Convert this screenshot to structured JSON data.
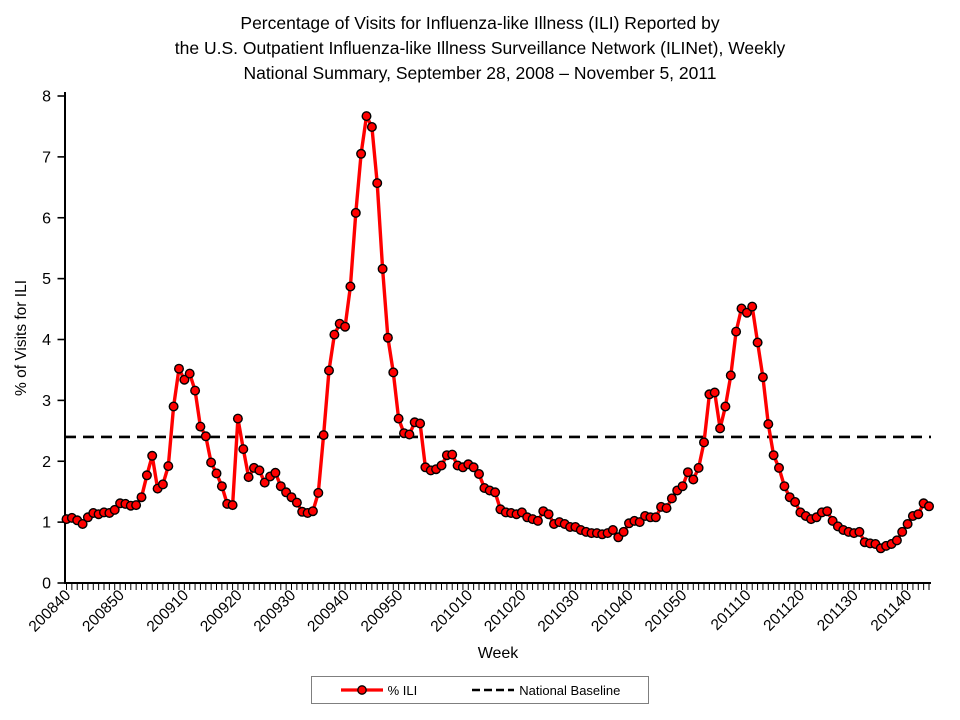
{
  "title_lines": [
    "Percentage of Visits for Influenza-like Illness (ILI) Reported by",
    "the U.S. Outpatient Influenza-like Illness Surveillance Network (ILINet), Weekly",
    "National Summary, September 28, 2008 – November 5, 2011"
  ],
  "y_axis": {
    "label": "% of Visits for ILI",
    "min": 0,
    "max": 8,
    "ticks": [
      0,
      1,
      2,
      3,
      4,
      5,
      6,
      7,
      8
    ]
  },
  "x_axis": {
    "label": "Week",
    "tick_labels": [
      "200840",
      "200850",
      "200910",
      "200920",
      "200930",
      "200940",
      "200950",
      "201010",
      "201020",
      "201030",
      "201040",
      "201050",
      "201110",
      "201120",
      "201130",
      "201140"
    ]
  },
  "legend": {
    "items": [
      {
        "label": "% ILI",
        "type": "line-marker",
        "color": "#ff0000"
      },
      {
        "label": "National Baseline",
        "type": "dashed-line",
        "color": "#000000"
      }
    ]
  },
  "chart_data": {
    "type": "line",
    "title": "Percentage of Visits for Influenza-like Illness (ILI) Reported by the U.S. Outpatient Influenza-like Illness Surveillance Network (ILINet), Weekly National Summary, September 28, 2008 – November 5, 2011",
    "xlabel": "Week",
    "ylabel": "% of Visits for ILI",
    "ylim": [
      0,
      8
    ],
    "grid": false,
    "legend_position": "bottom-center",
    "x": [
      "200840",
      "200841",
      "200842",
      "200843",
      "200844",
      "200845",
      "200846",
      "200847",
      "200848",
      "200849",
      "200850",
      "200851",
      "200852",
      "200901",
      "200902",
      "200903",
      "200904",
      "200905",
      "200906",
      "200907",
      "200908",
      "200909",
      "200910",
      "200911",
      "200912",
      "200913",
      "200914",
      "200915",
      "200916",
      "200917",
      "200918",
      "200919",
      "200920",
      "200921",
      "200922",
      "200923",
      "200924",
      "200925",
      "200926",
      "200927",
      "200928",
      "200929",
      "200930",
      "200931",
      "200932",
      "200933",
      "200934",
      "200935",
      "200936",
      "200937",
      "200938",
      "200939",
      "200940",
      "200941",
      "200942",
      "200943",
      "200944",
      "200945",
      "200946",
      "200947",
      "200948",
      "200949",
      "200950",
      "200951",
      "200952",
      "200953",
      "201001",
      "201002",
      "201003",
      "201004",
      "201005",
      "201006",
      "201007",
      "201008",
      "201009",
      "201010",
      "201011",
      "201012",
      "201013",
      "201014",
      "201015",
      "201016",
      "201017",
      "201018",
      "201019",
      "201020",
      "201021",
      "201022",
      "201023",
      "201024",
      "201025",
      "201026",
      "201027",
      "201028",
      "201029",
      "201030",
      "201031",
      "201032",
      "201033",
      "201034",
      "201035",
      "201036",
      "201037",
      "201038",
      "201039",
      "201040",
      "201041",
      "201042",
      "201043",
      "201044",
      "201045",
      "201046",
      "201047",
      "201048",
      "201049",
      "201050",
      "201051",
      "201052",
      "201101",
      "201102",
      "201103",
      "201104",
      "201105",
      "201106",
      "201107",
      "201108",
      "201109",
      "201110",
      "201111",
      "201112",
      "201113",
      "201114",
      "201115",
      "201116",
      "201117",
      "201118",
      "201119",
      "201120",
      "201121",
      "201122",
      "201123",
      "201124",
      "201125",
      "201126",
      "201127",
      "201128",
      "201129",
      "201130",
      "201131",
      "201132",
      "201133",
      "201134",
      "201135",
      "201136",
      "201137",
      "201138",
      "201139",
      "201140",
      "201141",
      "201142",
      "201143",
      "201144"
    ],
    "series": [
      {
        "name": "% ILI",
        "color": "#ff0000",
        "marker": "circle",
        "values": [
          1.05,
          1.07,
          1.03,
          0.97,
          1.08,
          1.15,
          1.13,
          1.16,
          1.15,
          1.2,
          1.31,
          1.3,
          1.27,
          1.28,
          1.41,
          1.77,
          2.09,
          1.55,
          1.62,
          1.92,
          2.9,
          3.52,
          3.34,
          3.44,
          3.16,
          2.57,
          2.41,
          1.98,
          1.8,
          1.59,
          1.3,
          1.28,
          2.7,
          2.2,
          1.74,
          1.89,
          1.85,
          1.65,
          1.75,
          1.81,
          1.59,
          1.49,
          1.41,
          1.32,
          1.17,
          1.15,
          1.18,
          1.48,
          2.43,
          3.49,
          4.08,
          4.26,
          4.21,
          4.87,
          6.08,
          7.05,
          7.67,
          7.49,
          6.57,
          5.16,
          4.03,
          3.46,
          2.7,
          2.46,
          2.44,
          2.64,
          2.62,
          1.9,
          1.85,
          1.87,
          1.93,
          2.1,
          2.11,
          1.93,
          1.9,
          1.95,
          1.9,
          1.79,
          1.56,
          1.52,
          1.49,
          1.21,
          1.16,
          1.15,
          1.13,
          1.16,
          1.08,
          1.05,
          1.02,
          1.18,
          1.13,
          0.97,
          1.0,
          0.97,
          0.92,
          0.92,
          0.87,
          0.84,
          0.82,
          0.82,
          0.8,
          0.82,
          0.87,
          0.75,
          0.84,
          0.98,
          1.02,
          1.0,
          1.1,
          1.08,
          1.08,
          1.25,
          1.23,
          1.39,
          1.52,
          1.59,
          1.82,
          1.7,
          1.89,
          2.31,
          3.1,
          3.13,
          2.54,
          2.9,
          3.41,
          4.13,
          4.51,
          4.44,
          4.54,
          3.95,
          3.38,
          2.61,
          2.1,
          1.89,
          1.59,
          1.41,
          1.33,
          1.16,
          1.1,
          1.05,
          1.08,
          1.16,
          1.18,
          1.02,
          0.93,
          0.87,
          0.84,
          0.82,
          0.84,
          0.67,
          0.65,
          0.64,
          0.57,
          0.61,
          0.64,
          0.7,
          0.84,
          0.97,
          1.1,
          1.13,
          1.31,
          1.26
        ]
      },
      {
        "name": "National Baseline",
        "color": "#000000",
        "style": "dashed",
        "value": 2.4
      }
    ]
  }
}
